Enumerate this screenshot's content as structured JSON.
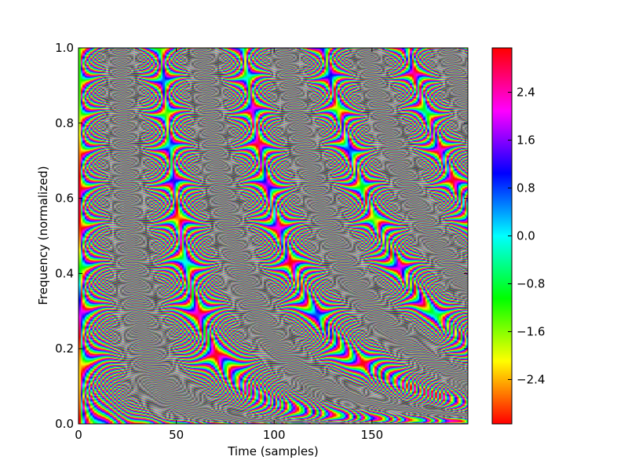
{
  "chart_data": {
    "type": "heatmap",
    "title": "",
    "xlabel": "Time (samples)",
    "ylabel": "Frequency (normalized)",
    "xlim": [
      0,
      199
    ],
    "ylim": [
      0.0,
      1.0
    ],
    "x_ticks": [
      0,
      50,
      100,
      150
    ],
    "x_tick_labels": [
      "0",
      "50",
      "100",
      "150"
    ],
    "y_ticks": [
      0.0,
      0.2,
      0.4,
      0.6,
      0.8,
      1.0
    ],
    "y_tick_labels": [
      "0.0",
      "0.2",
      "0.4",
      "0.6",
      "0.8",
      "1.0"
    ],
    "colormap": "hsv",
    "value_range": [
      -3.14159,
      3.14159
    ],
    "colorbar": {
      "ticks": [
        2.4,
        1.6,
        0.8,
        0.0,
        -0.8,
        -1.6,
        -2.4
      ],
      "tick_labels": [
        "2.4",
        "1.6",
        "0.8",
        "0.0",
        "−0.8",
        "−1.6",
        "−2.4"
      ]
    },
    "grid": false,
    "legend": "none"
  }
}
